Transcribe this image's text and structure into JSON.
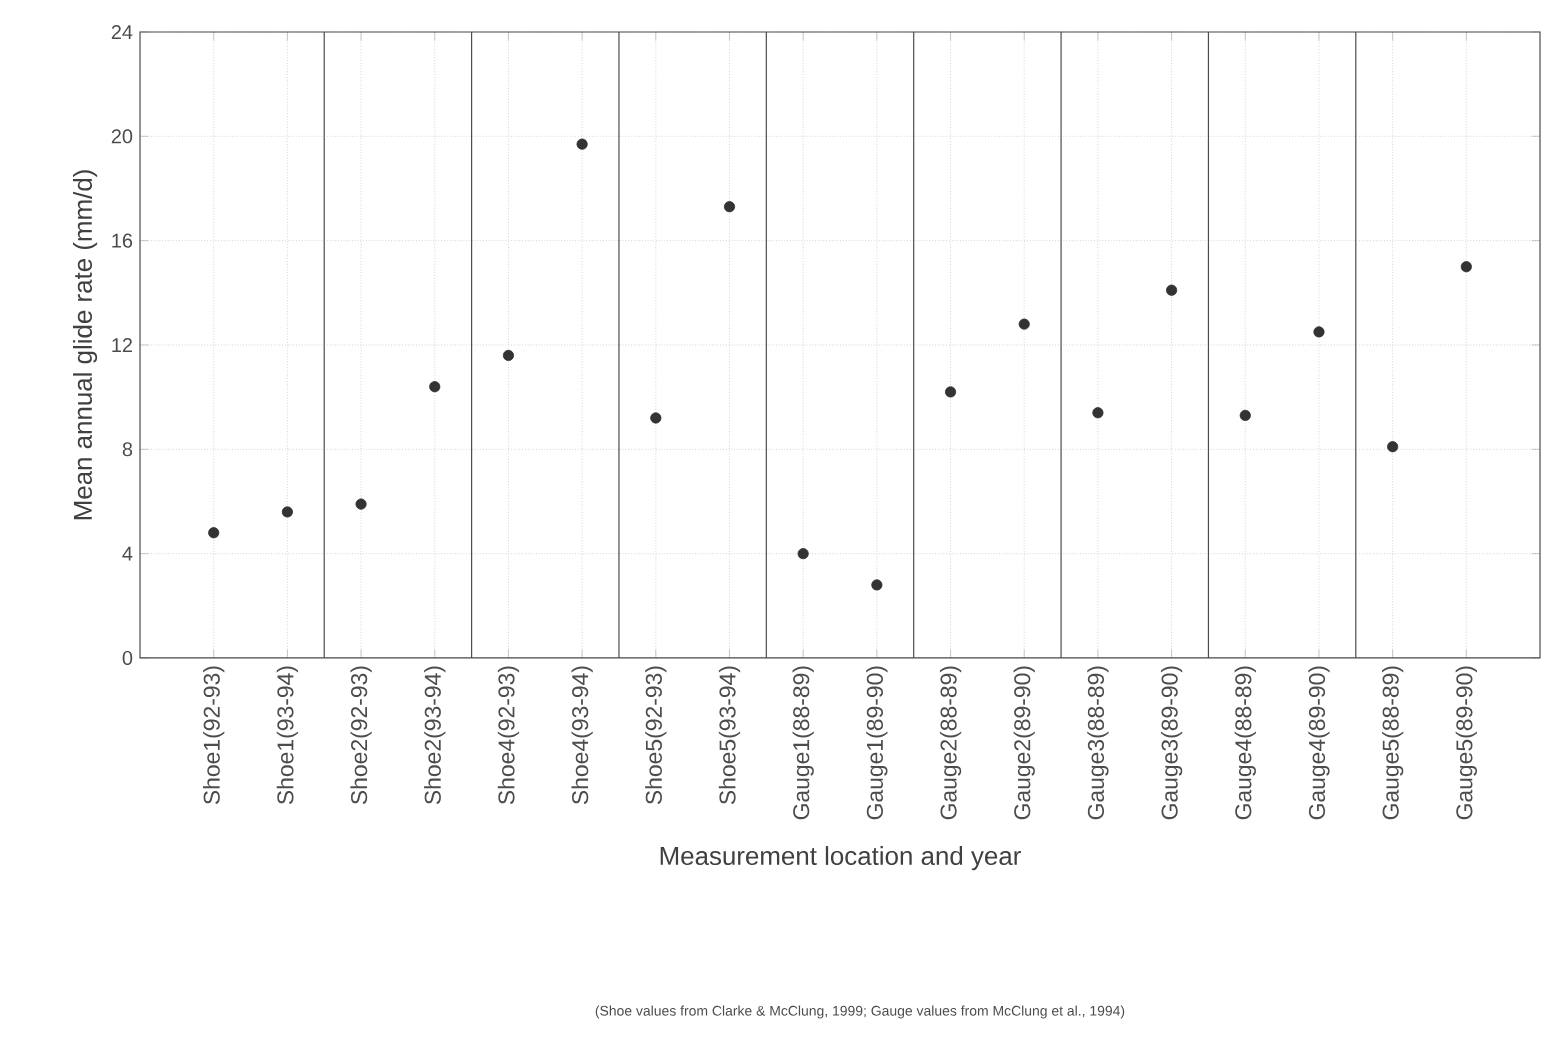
{
  "chart_data": {
    "type": "scatter",
    "xlabel": "Measurement location and year",
    "ylabel": "Mean annual glide rate (mm/d)",
    "categories": [
      "Shoe1(92-93)",
      "Shoe1(93-94)",
      "Shoe2(92-93)",
      "Shoe2(93-94)",
      "Shoe4(92-93)",
      "Shoe4(93-94)",
      "Shoe5(92-93)",
      "Shoe5(93-94)",
      "Gauge1(88-89)",
      "Gauge1(89-90)",
      "Gauge2(88-89)",
      "Gauge2(89-90)",
      "Gauge3(88-89)",
      "Gauge3(89-90)",
      "Gauge4(88-89)",
      "Gauge4(89-90)",
      "Gauge5(88-89)",
      "Gauge5(89-90)"
    ],
    "values": [
      4.8,
      5.6,
      5.9,
      10.4,
      11.6,
      19.7,
      9.2,
      17.3,
      4.0,
      2.8,
      10.2,
      12.8,
      9.4,
      14.1,
      9.3,
      12.5,
      8.1,
      15.0
    ],
    "color": "#333333",
    "marker": "circle",
    "grid": true,
    "ylim": [
      0,
      24
    ],
    "yticks": [
      0,
      4,
      8,
      12,
      16,
      20,
      24
    ],
    "annotations": [
      "(Shoe values from Clarke & McClung, 1999; Gauge values from McClung et al., 1994)"
    ]
  }
}
